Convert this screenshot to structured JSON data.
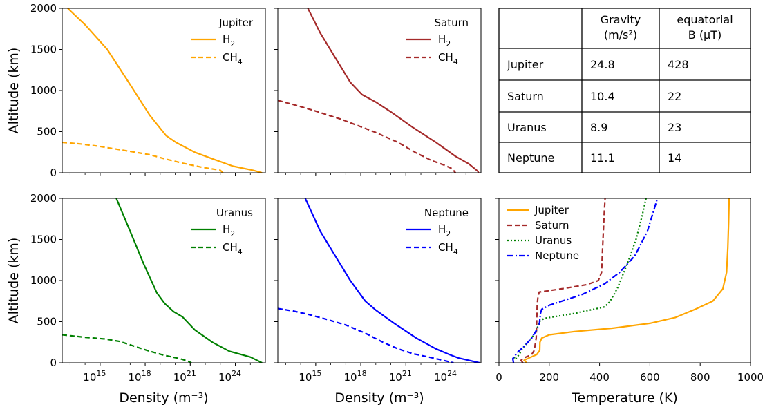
{
  "chart_data": [
    {
      "type": "line",
      "title": "",
      "xlabel": "",
      "ylabel": "Altitude (km)",
      "xscale": "log",
      "xlim": [
        3000000000000.0,
        1e+26
      ],
      "ylim": [
        0,
        2000
      ],
      "xticks": [
        1000000000000000.0,
        1e+18,
        1e+21,
        1e+24
      ],
      "xtick_labels": [
        "10^15",
        "10^18",
        "10^21",
        "10^24"
      ],
      "yticks": [
        0,
        500,
        1000,
        1500,
        2000
      ],
      "legend": {
        "position": "top-right",
        "title": "Jupiter"
      },
      "series": [
        {
          "name": "H2",
          "color": "#ffa500",
          "style": "solid",
          "points": [
            [
              7000000000000.0,
              2000
            ],
            [
              100000000000000.0,
              1800
            ],
            [
              3000000000000000.0,
              1500
            ],
            [
              8e+16,
              1100
            ],
            [
              2e+18,
              700
            ],
            [
              2.5e+19,
              450
            ],
            [
              1.1e+20,
              370
            ],
            [
              2e+21,
              250
            ],
            [
              3e+22,
              170
            ],
            [
              7e+23,
              80
            ],
            [
              1.5e+25,
              30
            ],
            [
              6e+25,
              0
            ]
          ]
        },
        {
          "name": "CH4",
          "color": "#ffa500",
          "style": "dashed",
          "points": [
            [
              3000000000000.0,
              370
            ],
            [
              50000000000000.0,
              350
            ],
            [
              1000000000000000.0,
              320
            ],
            [
              1e+17,
              260
            ],
            [
              2e+18,
              220
            ],
            [
              2e+19,
              170
            ],
            [
              2.5e+20,
              120
            ],
            [
              5e+21,
              70
            ],
            [
              1e+23,
              30
            ],
            [
              1.5e+23,
              0
            ]
          ]
        }
      ]
    },
    {
      "type": "line",
      "title": "",
      "xlabel": "",
      "ylabel": "",
      "xscale": "log",
      "xlim": [
        3000000000000.0,
        1e+26
      ],
      "ylim": [
        0,
        2000
      ],
      "xticks": [
        1000000000000000.0,
        1e+18,
        1e+21,
        1e+24
      ],
      "legend": {
        "position": "top-right",
        "title": "Saturn"
      },
      "series": [
        {
          "name": "H2",
          "color": "#a52a2a",
          "style": "solid",
          "points": [
            [
              300000000000000.0,
              2000
            ],
            [
              2000000000000000.0,
              1700
            ],
            [
              2e+16,
              1400
            ],
            [
              2e+17,
              1100
            ],
            [
              1.2e+18,
              950
            ],
            [
              1e+19,
              860
            ],
            [
              1e+20,
              740
            ],
            [
              3e+21,
              550
            ],
            [
              1e+23,
              370
            ],
            [
              2e+24,
              200
            ],
            [
              1.5e+25,
              110
            ],
            [
              6e+25,
              20
            ],
            [
              7e+25,
              0
            ]
          ]
        },
        {
          "name": "CH4",
          "color": "#a52a2a",
          "style": "dashed",
          "points": [
            [
              3000000000000.0,
              880
            ],
            [
              50000000000000.0,
              820
            ],
            [
              1000000000000000.0,
              750
            ],
            [
              5e+16,
              650
            ],
            [
              1e+18,
              560
            ],
            [
              1e+19,
              490
            ],
            [
              3e+20,
              370
            ],
            [
              5e+21,
              240
            ],
            [
              5e+22,
              150
            ],
            [
              4e+23,
              90
            ],
            [
              1.2e+24,
              50
            ],
            [
              2e+24,
              0
            ]
          ]
        }
      ]
    },
    {
      "type": "table",
      "columns": [
        "",
        "Gravity (m/s²)",
        "equatorial B (μT)"
      ],
      "header_lines": [
        [
          "Gravity",
          "(m/s²)"
        ],
        [
          "equatorial",
          "B (μT)"
        ]
      ],
      "rows": [
        [
          "Jupiter",
          "24.8",
          "428"
        ],
        [
          "Saturn",
          "10.4",
          "22"
        ],
        [
          "Uranus",
          "8.9",
          "23"
        ],
        [
          "Neptune",
          "11.1",
          "14"
        ]
      ]
    },
    {
      "type": "line",
      "title": "",
      "xlabel": "Density (m⁻³)",
      "ylabel": "Altitude (km)",
      "xscale": "log",
      "xlim": [
        3000000000000.0,
        1e+26
      ],
      "ylim": [
        0,
        2000
      ],
      "xticks": [
        1000000000000000.0,
        1e+18,
        1e+21,
        1e+24
      ],
      "xtick_labels": [
        "10^15",
        "10^18",
        "10^21",
        "10^24"
      ],
      "yticks": [
        0,
        500,
        1000,
        1500,
        2000
      ],
      "legend": {
        "position": "top-right",
        "title": "Uranus"
      },
      "series": [
        {
          "name": "H2",
          "color": "#008000",
          "style": "solid",
          "points": [
            [
              1.2e+16,
              2000
            ],
            [
              1e+17,
              1600
            ],
            [
              8e+17,
              1200
            ],
            [
              6e+18,
              850
            ],
            [
              2e+19,
              720
            ],
            [
              8e+19,
              620
            ],
            [
              3e+20,
              560
            ],
            [
              2e+21,
              400
            ],
            [
              3e+22,
              250
            ],
            [
              4e+23,
              140
            ],
            [
              1e+25,
              70
            ],
            [
              6e+25,
              0
            ]
          ]
        },
        {
          "name": "CH4",
          "color": "#008000",
          "style": "dashed",
          "points": [
            [
              3000000000000.0,
              340
            ],
            [
              100000000000000.0,
              310
            ],
            [
              2000000000000000.0,
              290
            ],
            [
              2e+16,
              260
            ],
            [
              2e+17,
              200
            ],
            [
              2e+18,
              140
            ],
            [
              2e+19,
              90
            ],
            [
              2e+20,
              50
            ],
            [
              7e+20,
              20
            ],
            [
              1.2e+21,
              0
            ]
          ]
        }
      ]
    },
    {
      "type": "line",
      "title": "",
      "xlabel": "Density (m⁻³)",
      "ylabel": "",
      "xscale": "log",
      "xlim": [
        3000000000000.0,
        1e+26
      ],
      "ylim": [
        0,
        2000
      ],
      "xticks": [
        1000000000000000.0,
        1e+18,
        1e+21,
        1e+24
      ],
      "xtick_labels": [
        "10^15",
        "10^18",
        "10^21",
        "10^24"
      ],
      "legend": {
        "position": "top-right",
        "title": "Neptune"
      },
      "series": [
        {
          "name": "H2",
          "color": "#0000ff",
          "style": "solid",
          "points": [
            [
              200000000000000.0,
              2000
            ],
            [
              2000000000000000.0,
              1600
            ],
            [
              2e+16,
              1300
            ],
            [
              2e+17,
              1000
            ],
            [
              2e+18,
              750
            ],
            [
              1e+19,
              640
            ],
            [
              2e+20,
              470
            ],
            [
              5e+21,
              300
            ],
            [
              1e+23,
              170
            ],
            [
              8e+23,
              100
            ],
            [
              3e+24,
              60
            ],
            [
              8e+25,
              0
            ]
          ]
        },
        {
          "name": "CH4",
          "color": "#0000ff",
          "style": "dashed",
          "points": [
            [
              3000000000000.0,
              660
            ],
            [
              30000000000000.0,
              630
            ],
            [
              300000000000000.0,
              590
            ],
            [
              5000000000000000.0,
              530
            ],
            [
              1e+17,
              460
            ],
            [
              2e+18,
              360
            ],
            [
              3e+19,
              250
            ],
            [
              3e+20,
              170
            ],
            [
              3e+21,
              110
            ],
            [
              6e+22,
              60
            ],
            [
              5e+23,
              20
            ],
            [
              1.5e+24,
              0
            ]
          ]
        }
      ]
    },
    {
      "type": "line",
      "title": "",
      "xlabel": "Temperature (K)",
      "ylabel": "",
      "xscale": "linear",
      "xlim": [
        0,
        1000
      ],
      "ylim": [
        0,
        2000
      ],
      "xticks": [
        0,
        200,
        400,
        600,
        800,
        1000
      ],
      "xtick_labels": [
        "0",
        "200",
        "400",
        "600",
        "800",
        "1000"
      ],
      "legend": {
        "position": "top-left"
      },
      "series": [
        {
          "name": "Jupiter",
          "color": "#ffa500",
          "style": "solid",
          "points": [
            [
              110,
              0
            ],
            [
              100,
              30
            ],
            [
              120,
              60
            ],
            [
              150,
              100
            ],
            [
              162,
              150
            ],
            [
              163,
              250
            ],
            [
              170,
              300
            ],
            [
              200,
              340
            ],
            [
              300,
              380
            ],
            [
              450,
              420
            ],
            [
              600,
              480
            ],
            [
              700,
              550
            ],
            [
              780,
              650
            ],
            [
              850,
              750
            ],
            [
              890,
              900
            ],
            [
              905,
              1100
            ],
            [
              910,
              1400
            ],
            [
              913,
              1700
            ],
            [
              915,
              2000
            ]
          ]
        },
        {
          "name": "Saturn",
          "color": "#a52a2a",
          "style": "dashed",
          "points": [
            [
              95,
              0
            ],
            [
              88,
              30
            ],
            [
              100,
              60
            ],
            [
              130,
              100
            ],
            [
              140,
              150
            ],
            [
              148,
              300
            ],
            [
              150,
              500
            ],
            [
              152,
              700
            ],
            [
              155,
              800
            ],
            [
              160,
              860
            ],
            [
              250,
              900
            ],
            [
              350,
              950
            ],
            [
              395,
              1000
            ],
            [
              408,
              1100
            ],
            [
              412,
              1400
            ],
            [
              418,
              1800
            ],
            [
              422,
              2000
            ]
          ]
        },
        {
          "name": "Uranus",
          "color": "#008000",
          "style": "dotted",
          "points": [
            [
              60,
              70
            ],
            [
              65,
              40
            ],
            [
              80,
              100
            ],
            [
              100,
              200
            ],
            [
              130,
              300
            ],
            [
              150,
              400
            ],
            [
              160,
              500
            ],
            [
              180,
              540
            ],
            [
              300,
              600
            ],
            [
              420,
              680
            ],
            [
              440,
              740
            ],
            [
              470,
              900
            ],
            [
              510,
              1200
            ],
            [
              545,
              1500
            ],
            [
              570,
              1800
            ],
            [
              585,
              2000
            ]
          ]
        },
        {
          "name": "Neptune",
          "color": "#0000ff",
          "style": "dashdot",
          "points": [
            [
              58,
              0
            ],
            [
              55,
              50
            ],
            [
              75,
              130
            ],
            [
              100,
              200
            ],
            [
              130,
              300
            ],
            [
              160,
              450
            ],
            [
              165,
              600
            ],
            [
              170,
              650
            ],
            [
              200,
              700
            ],
            [
              250,
              750
            ],
            [
              330,
              830
            ],
            [
              420,
              960
            ],
            [
              480,
              1100
            ],
            [
              540,
              1300
            ],
            [
              590,
              1600
            ],
            [
              630,
              2000
            ]
          ]
        }
      ]
    }
  ]
}
